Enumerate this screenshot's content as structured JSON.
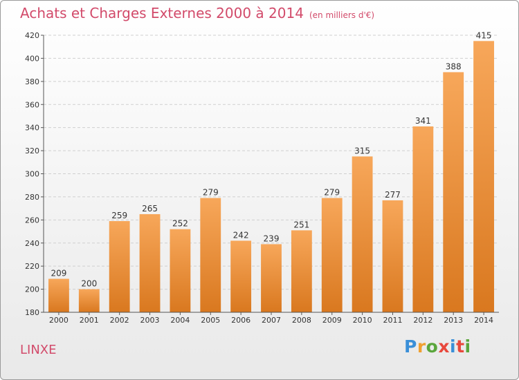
{
  "title": "Achats et Charges Externes 2000 à 2014",
  "title_unit": "(en milliers d'€)",
  "commune": "LINXE",
  "logo": {
    "text": "Proxiti",
    "letter_colors": [
      "#3a8fd8",
      "#f0a030",
      "#5aa63c",
      "#e8483c",
      "#3a8fd8",
      "#e8483c",
      "#5aa63c"
    ]
  },
  "colors": {
    "title": "#d24a6a",
    "bar_top": "#f7a75a",
    "bar_bottom": "#d9781f"
  },
  "chart_data": {
    "type": "bar",
    "categories": [
      "2000",
      "2001",
      "2002",
      "2003",
      "2004",
      "2005",
      "2006",
      "2007",
      "2008",
      "2009",
      "2010",
      "2011",
      "2012",
      "2013",
      "2014"
    ],
    "values": [
      209,
      200,
      259,
      265,
      252,
      279,
      242,
      239,
      251,
      279,
      315,
      277,
      341,
      388,
      415
    ],
    "ylim": [
      180,
      420
    ],
    "yticks": [
      180,
      200,
      220,
      240,
      260,
      280,
      300,
      320,
      340,
      360,
      380,
      400,
      420
    ],
    "grid": true,
    "data_labels": true
  }
}
